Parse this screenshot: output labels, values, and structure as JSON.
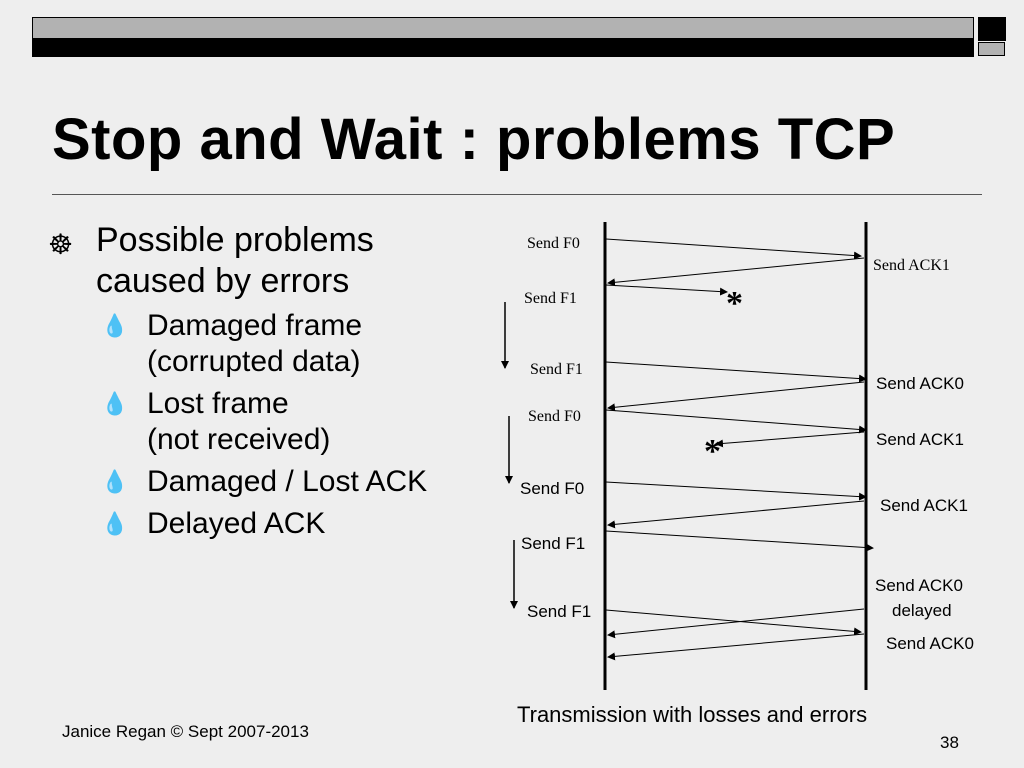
{
  "slide": {
    "title": "Stop and Wait : problems  TCP",
    "footer": "Janice Regan © Sept 2007-2013",
    "page_number": "38"
  },
  "bullets": {
    "main": [
      "Possible problems",
      "caused by errors"
    ],
    "sub": [
      [
        "Damaged frame",
        "(corrupted data)"
      ],
      [
        "Lost frame",
        "(not received)"
      ],
      [
        "Damaged / Lost ACK"
      ],
      [
        "Delayed ACK"
      ]
    ]
  },
  "diagram": {
    "caption": "Transmission with losses and errors",
    "sender_labels": [
      "Send F0",
      "Send F1",
      "Send F1",
      "Send F0",
      "Send F0",
      "Send F1",
      "Send F1"
    ],
    "receiver_labels": [
      "Send ACK1",
      "Send ACK0",
      "Send ACK1",
      "Send ACK1",
      "Send ACK0",
      "delayed",
      "Send ACK0"
    ],
    "error_mark": "*"
  }
}
